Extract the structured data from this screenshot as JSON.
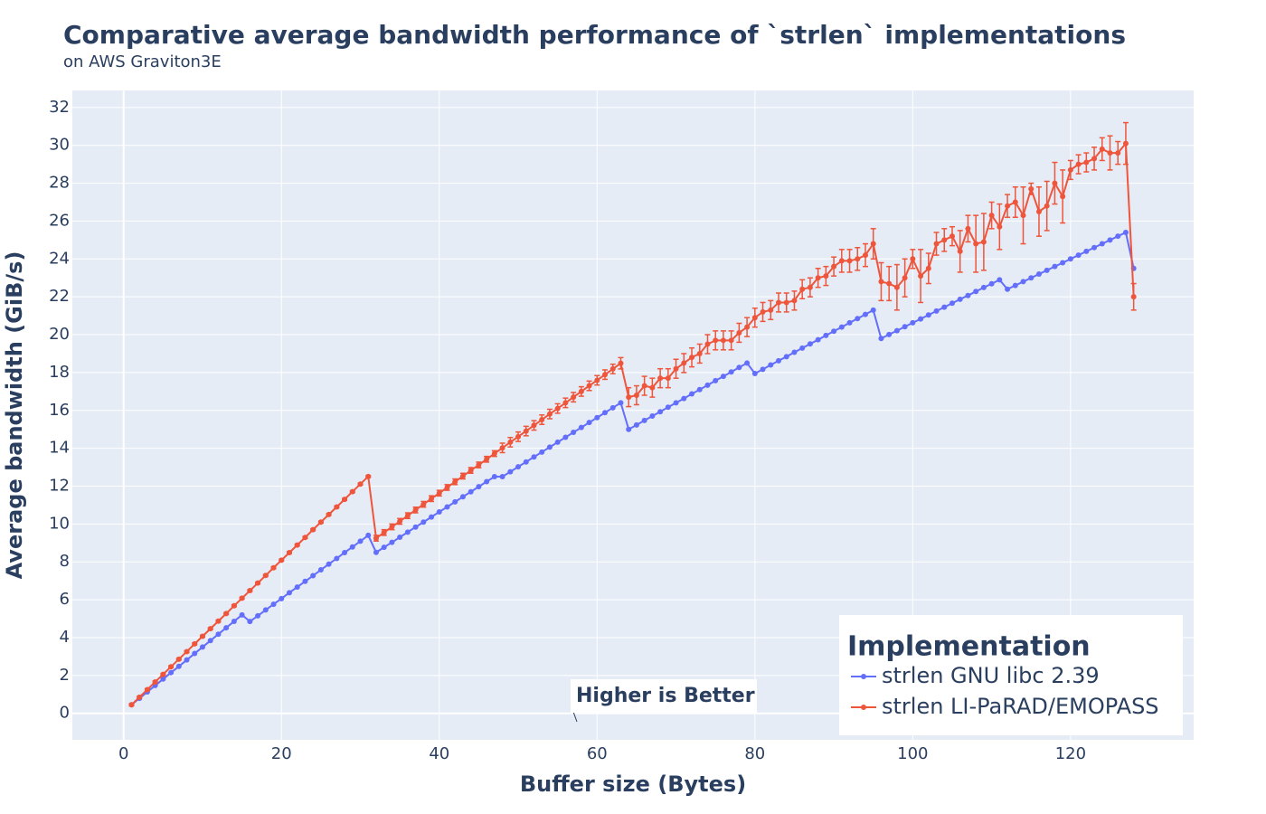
{
  "chart_data": {
    "type": "line",
    "title": "Comparative average bandwidth performance of `strlen` implementations",
    "subtitle": "on AWS Graviton3E",
    "x_label": "Buffer size (Bytes)",
    "y_label": "Average bandwidth (GiB/s)",
    "legend_title": "Implementation",
    "legend_position": "bottom-right",
    "annotation": "Higher is Better",
    "grid": true,
    "xlim": [
      -6.5,
      135.6
    ],
    "ylim": [
      -1.4,
      32.9
    ],
    "xticks": [
      0,
      20,
      40,
      60,
      80,
      100,
      120
    ],
    "yticks": [
      0,
      2,
      4,
      6,
      8,
      10,
      12,
      14,
      16,
      18,
      20,
      22,
      24,
      26,
      28,
      30,
      32
    ],
    "x": [
      1,
      2,
      3,
      4,
      5,
      6,
      7,
      8,
      9,
      10,
      11,
      12,
      13,
      14,
      15,
      16,
      17,
      18,
      19,
      20,
      21,
      22,
      23,
      24,
      25,
      26,
      27,
      28,
      29,
      30,
      31,
      32,
      33,
      34,
      35,
      36,
      37,
      38,
      39,
      40,
      41,
      42,
      43,
      44,
      45,
      46,
      47,
      48,
      49,
      50,
      51,
      52,
      53,
      54,
      55,
      56,
      57,
      58,
      59,
      60,
      61,
      62,
      63,
      64,
      65,
      66,
      67,
      68,
      69,
      70,
      71,
      72,
      73,
      74,
      75,
      76,
      77,
      78,
      79,
      80,
      81,
      82,
      83,
      84,
      85,
      86,
      87,
      88,
      89,
      90,
      91,
      92,
      93,
      94,
      95,
      96,
      97,
      98,
      99,
      100,
      101,
      102,
      103,
      104,
      105,
      106,
      107,
      108,
      109,
      110,
      111,
      112,
      113,
      114,
      115,
      116,
      117,
      118,
      119,
      120,
      121,
      122,
      123,
      124,
      125,
      126,
      127,
      128
    ],
    "series": [
      {
        "name": "strlen GNU libc 2.39",
        "color": "#636efa",
        "values": [
          0.45,
          0.79,
          1.13,
          1.47,
          1.81,
          2.15,
          2.48,
          2.82,
          3.16,
          3.5,
          3.84,
          4.18,
          4.52,
          4.86,
          5.2,
          4.85,
          5.15,
          5.46,
          5.76,
          6.06,
          6.37,
          6.67,
          6.97,
          7.27,
          7.58,
          7.88,
          8.18,
          8.49,
          8.79,
          9.09,
          9.4,
          8.5,
          8.77,
          9.03,
          9.3,
          9.57,
          9.84,
          10.1,
          10.37,
          10.64,
          10.9,
          11.17,
          11.44,
          11.7,
          11.97,
          12.24,
          12.5,
          12.5,
          12.76,
          13.02,
          13.28,
          13.54,
          13.8,
          14.06,
          14.32,
          14.58,
          14.84,
          15.1,
          15.36,
          15.62,
          15.88,
          16.14,
          16.4,
          15.0,
          15.23,
          15.47,
          15.7,
          15.93,
          16.17,
          16.4,
          16.63,
          16.87,
          17.1,
          17.33,
          17.57,
          17.8,
          18.03,
          18.27,
          18.5,
          17.95,
          18.17,
          18.4,
          18.62,
          18.84,
          19.07,
          19.29,
          19.51,
          19.73,
          19.96,
          20.18,
          20.4,
          20.63,
          20.85,
          21.07,
          21.3,
          19.8,
          20.01,
          20.21,
          20.42,
          20.63,
          20.83,
          21.04,
          21.25,
          21.45,
          21.66,
          21.87,
          22.07,
          22.28,
          22.49,
          22.69,
          22.9,
          22.4,
          22.6,
          22.8,
          23.0,
          23.2,
          23.4,
          23.6,
          23.8,
          24.0,
          24.2,
          24.4,
          24.6,
          24.8,
          25.0,
          25.2,
          25.4,
          23.5
        ]
      },
      {
        "name": "strlen LI-PaRAD/EMOPASS",
        "color": "#ef553b",
        "values": [
          0.45,
          0.85,
          1.25,
          1.66,
          2.06,
          2.46,
          2.86,
          3.26,
          3.67,
          4.07,
          4.47,
          4.87,
          5.27,
          5.68,
          6.08,
          6.48,
          6.88,
          7.28,
          7.69,
          8.09,
          8.49,
          8.89,
          9.29,
          9.7,
          10.1,
          10.5,
          10.9,
          11.3,
          11.71,
          12.11,
          12.51,
          9.25,
          9.55,
          9.85,
          10.14,
          10.44,
          10.74,
          11.04,
          11.34,
          11.63,
          11.93,
          12.23,
          12.53,
          12.83,
          13.12,
          13.42,
          13.72,
          14.02,
          14.32,
          14.61,
          14.91,
          15.21,
          15.51,
          15.81,
          16.1,
          16.4,
          16.7,
          17.0,
          17.3,
          17.59,
          17.89,
          18.19,
          18.49,
          16.7,
          16.8,
          17.3,
          17.2,
          17.7,
          17.7,
          18.2,
          18.5,
          18.8,
          19.0,
          19.5,
          19.7,
          19.7,
          19.7,
          20.1,
          20.4,
          20.9,
          21.2,
          21.3,
          21.7,
          21.7,
          21.8,
          22.4,
          22.5,
          23.0,
          23.1,
          23.6,
          23.9,
          23.9,
          24.0,
          24.2,
          24.8,
          22.8,
          22.7,
          22.5,
          23.0,
          24.0,
          23.1,
          23.5,
          24.8,
          25.0,
          25.2,
          24.4,
          25.6,
          24.8,
          24.9,
          26.3,
          25.7,
          26.8,
          27.0,
          26.3,
          27.7,
          26.5,
          26.8,
          28.0,
          27.3,
          28.7,
          29.0,
          29.1,
          29.3,
          29.8,
          29.6,
          29.6,
          30.1,
          22.0
        ],
        "errors": [
          0.05,
          0.05,
          0.05,
          0.05,
          0.05,
          0.05,
          0.05,
          0.05,
          0.05,
          0.05,
          0.05,
          0.05,
          0.05,
          0.05,
          0.05,
          0.05,
          0.05,
          0.05,
          0.05,
          0.05,
          0.05,
          0.05,
          0.05,
          0.05,
          0.05,
          0.05,
          0.05,
          0.05,
          0.05,
          0.05,
          0.05,
          0.15,
          0.15,
          0.15,
          0.15,
          0.15,
          0.15,
          0.15,
          0.15,
          0.15,
          0.15,
          0.15,
          0.15,
          0.15,
          0.15,
          0.15,
          0.15,
          0.25,
          0.25,
          0.25,
          0.25,
          0.25,
          0.25,
          0.25,
          0.25,
          0.25,
          0.25,
          0.25,
          0.25,
          0.25,
          0.25,
          0.25,
          0.3,
          0.5,
          0.5,
          0.5,
          0.5,
          0.5,
          0.5,
          0.5,
          0.5,
          0.5,
          0.5,
          0.5,
          0.5,
          0.5,
          0.5,
          0.5,
          0.5,
          0.5,
          0.5,
          0.5,
          0.5,
          0.5,
          0.5,
          0.5,
          0.5,
          0.5,
          0.5,
          0.5,
          0.6,
          0.6,
          0.6,
          0.6,
          0.8,
          1.0,
          0.9,
          1.2,
          1.0,
          0.5,
          1.4,
          0.8,
          0.6,
          0.6,
          0.5,
          1.1,
          0.7,
          1.5,
          1.5,
          0.7,
          1.2,
          0.6,
          0.8,
          1.5,
          0.3,
          1.3,
          1.3,
          1.1,
          1.4,
          0.5,
          0.5,
          0.5,
          0.6,
          0.6,
          0.9,
          0.6,
          1.1,
          0.7
        ]
      }
    ]
  }
}
